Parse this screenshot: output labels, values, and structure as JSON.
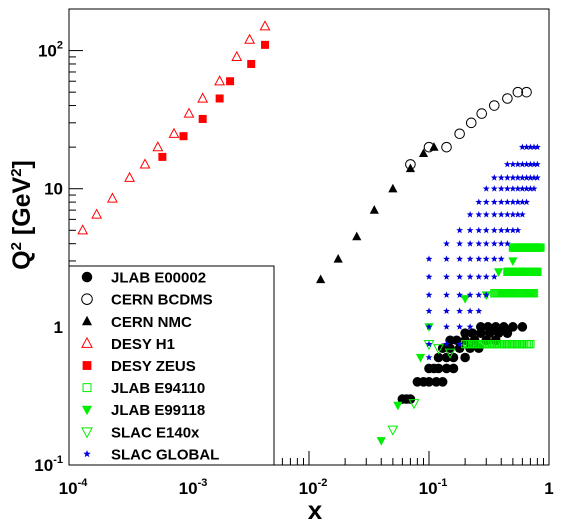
{
  "chart_data": {
    "type": "scatter",
    "xlabel": "x",
    "ylabel_main": "Q",
    "ylabel_sup": "2",
    "ylabel_rest": " [GeV",
    "ylabel_unit_sup": "2",
    "ylabel_close": "]",
    "xscale": "log",
    "yscale": "log",
    "xlim": [
      0.0001,
      1
    ],
    "ylim": [
      0.1,
      200
    ],
    "grid": false,
    "legend_position": "bottom-left",
    "x_ticks": [
      {
        "value": 0.0001,
        "base": "10",
        "exp": "-4"
      },
      {
        "value": 0.001,
        "base": "10",
        "exp": "-3"
      },
      {
        "value": 0.01,
        "base": "10",
        "exp": "-2"
      },
      {
        "value": 0.1,
        "base": "10",
        "exp": "-1"
      },
      {
        "value": 1,
        "base": "1",
        "exp": ""
      }
    ],
    "y_ticks": [
      {
        "value": 0.1,
        "base": "10",
        "exp": "-1"
      },
      {
        "value": 1,
        "base": "1",
        "exp": ""
      },
      {
        "value": 10,
        "base": "10",
        "exp": ""
      },
      {
        "value": 100,
        "base": "10",
        "exp": "2"
      }
    ],
    "series": [
      {
        "name": "JLAB E00002",
        "marker": "circle-filled",
        "color": "#000000",
        "points": [
          [
            0.06,
            0.3
          ],
          [
            0.065,
            0.3
          ],
          [
            0.07,
            0.3
          ],
          [
            0.08,
            0.4
          ],
          [
            0.09,
            0.4
          ],
          [
            0.1,
            0.4
          ],
          [
            0.115,
            0.4
          ],
          [
            0.13,
            0.4
          ],
          [
            0.1,
            0.5
          ],
          [
            0.11,
            0.5
          ],
          [
            0.12,
            0.5
          ],
          [
            0.14,
            0.5
          ],
          [
            0.16,
            0.5
          ],
          [
            0.12,
            0.6
          ],
          [
            0.14,
            0.6
          ],
          [
            0.16,
            0.6
          ],
          [
            0.2,
            0.6
          ],
          [
            0.13,
            0.7
          ],
          [
            0.15,
            0.7
          ],
          [
            0.18,
            0.7
          ],
          [
            0.22,
            0.7
          ],
          [
            0.26,
            0.7
          ],
          [
            0.15,
            0.8
          ],
          [
            0.17,
            0.8
          ],
          [
            0.2,
            0.8
          ],
          [
            0.24,
            0.8
          ],
          [
            0.3,
            0.8
          ],
          [
            0.36,
            0.8
          ],
          [
            0.2,
            0.9
          ],
          [
            0.23,
            0.9
          ],
          [
            0.27,
            0.9
          ],
          [
            0.32,
            0.9
          ],
          [
            0.38,
            0.9
          ],
          [
            0.45,
            0.9
          ],
          [
            0.27,
            1.0
          ],
          [
            0.31,
            1.0
          ],
          [
            0.36,
            1.0
          ],
          [
            0.42,
            1.0
          ],
          [
            0.5,
            1.0
          ],
          [
            0.6,
            1.0
          ]
        ]
      },
      {
        "name": "CERN BCDMS",
        "marker": "circle-open",
        "color": "#000000",
        "points": [
          [
            0.07,
            15
          ],
          [
            0.1,
            20
          ],
          [
            0.14,
            20
          ],
          [
            0.18,
            25
          ],
          [
            0.225,
            30
          ],
          [
            0.275,
            35
          ],
          [
            0.35,
            40
          ],
          [
            0.45,
            45
          ],
          [
            0.55,
            50
          ],
          [
            0.65,
            50
          ]
        ]
      },
      {
        "name": "CERN NMC",
        "marker": "triangle-up-filled",
        "color": "#000000",
        "points": [
          [
            0.0125,
            2.2
          ],
          [
            0.0175,
            3.1
          ],
          [
            0.025,
            4.5
          ],
          [
            0.035,
            7
          ],
          [
            0.05,
            10
          ],
          [
            0.07,
            14
          ],
          [
            0.09,
            18
          ],
          [
            0.11,
            20
          ]
        ]
      },
      {
        "name": "DESY H1",
        "marker": "triangle-up-open",
        "color": "#ff0000",
        "points": [
          [
            0.00013,
            5
          ],
          [
            0.00017,
            6.5
          ],
          [
            0.00023,
            8.5
          ],
          [
            0.00032,
            12
          ],
          [
            0.00043,
            15
          ],
          [
            0.00055,
            20
          ],
          [
            0.00075,
            25
          ],
          [
            0.001,
            35
          ],
          [
            0.0013,
            45
          ],
          [
            0.0018,
            60
          ],
          [
            0.0025,
            90
          ],
          [
            0.0032,
            120
          ],
          [
            0.0043,
            150
          ]
        ]
      },
      {
        "name": "DESY ZEUS",
        "marker": "square-filled",
        "color": "#ff0000",
        "points": [
          [
            0.0006,
            17
          ],
          [
            0.0009,
            24
          ],
          [
            0.0013,
            32
          ],
          [
            0.0018,
            45
          ],
          [
            0.0022,
            60
          ],
          [
            0.0033,
            80
          ],
          [
            0.0043,
            110
          ]
        ]
      },
      {
        "name": "JLAB E94110",
        "marker": "square-open",
        "color": "#00ee00",
        "rows": [
          {
            "q2": 0.75,
            "x_start": 0.2,
            "x_end": 0.7,
            "count": 40
          },
          {
            "q2": 1.75,
            "x_start": 0.35,
            "x_end": 0.75,
            "count": 40
          },
          {
            "q2": 2.5,
            "x_start": 0.45,
            "x_end": 0.8,
            "count": 40
          },
          {
            "q2": 3.75,
            "x_start": 0.5,
            "x_end": 0.85,
            "count": 40
          }
        ]
      },
      {
        "name": "JLAB E99118",
        "marker": "triangle-down-filled",
        "color": "#00ee00",
        "points": [
          [
            0.04,
            0.15
          ],
          [
            0.055,
            0.27
          ],
          [
            0.085,
            0.6
          ],
          [
            0.1,
            1.0
          ],
          [
            0.2,
            1.6
          ],
          [
            0.3,
            1.7
          ],
          [
            0.38,
            2.5
          ],
          [
            0.5,
            3.0
          ]
        ]
      },
      {
        "name": "SLAC E140x",
        "marker": "triangle-down-open",
        "color": "#00ee00",
        "points": [
          [
            0.05,
            0.18
          ],
          [
            0.075,
            0.28
          ],
          [
            0.1,
            0.75
          ],
          [
            0.12,
            0.7
          ],
          [
            0.15,
            0.65
          ]
        ]
      },
      {
        "name": "SLAC GLOBAL",
        "marker": "star",
        "color": "#0000dd",
        "columns": [
          {
            "x": 0.1,
            "q2": [
              0.6,
              0.75,
              1.0,
              1.3,
              1.7,
              2.3,
              3.1
            ]
          },
          {
            "x": 0.14,
            "q2": [
              0.75,
              1.0,
              1.3,
              1.7,
              2.3,
              3.1,
              4.0
            ]
          },
          {
            "x": 0.18,
            "q2": [
              0.75,
              1.0,
              1.3,
              1.7,
              2.3,
              3.1,
              4.0,
              5.0
            ]
          },
          {
            "x": 0.22,
            "q2": [
              1.0,
              1.3,
              1.7,
              2.3,
              3.1,
              4.0,
              5.0,
              6.5
            ]
          },
          {
            "x": 0.26,
            "q2": [
              1.3,
              1.7,
              2.3,
              3.1,
              4.0,
              5.0,
              6.5,
              8.0
            ]
          },
          {
            "x": 0.3,
            "q2": [
              1.7,
              2.3,
              3.1,
              4.0,
              5.0,
              6.5,
              8.0,
              10
            ]
          },
          {
            "x": 0.35,
            "q2": [
              2.3,
              3.1,
              4.0,
              5.0,
              6.5,
              8.0,
              10,
              12
            ]
          },
          {
            "x": 0.4,
            "q2": [
              3.1,
              4.0,
              5.0,
              6.5,
              8.0,
              10,
              12
            ]
          },
          {
            "x": 0.45,
            "q2": [
              4.0,
              5.0,
              6.5,
              8.0,
              10,
              12,
              15
            ]
          },
          {
            "x": 0.5,
            "q2": [
              5.0,
              6.5,
              8.0,
              10,
              12,
              15
            ]
          },
          {
            "x": 0.55,
            "q2": [
              5.0,
              6.5,
              8.0,
              10,
              12,
              15
            ]
          },
          {
            "x": 0.6,
            "q2": [
              6.5,
              8.0,
              10,
              12,
              15,
              20
            ]
          },
          {
            "x": 0.65,
            "q2": [
              8.0,
              10,
              12,
              15,
              20
            ]
          },
          {
            "x": 0.7,
            "q2": [
              10,
              12,
              15,
              20
            ]
          },
          {
            "x": 0.75,
            "q2": [
              10,
              12,
              15,
              20
            ]
          },
          {
            "x": 0.8,
            "q2": [
              12,
              15,
              20
            ]
          }
        ]
      }
    ]
  }
}
